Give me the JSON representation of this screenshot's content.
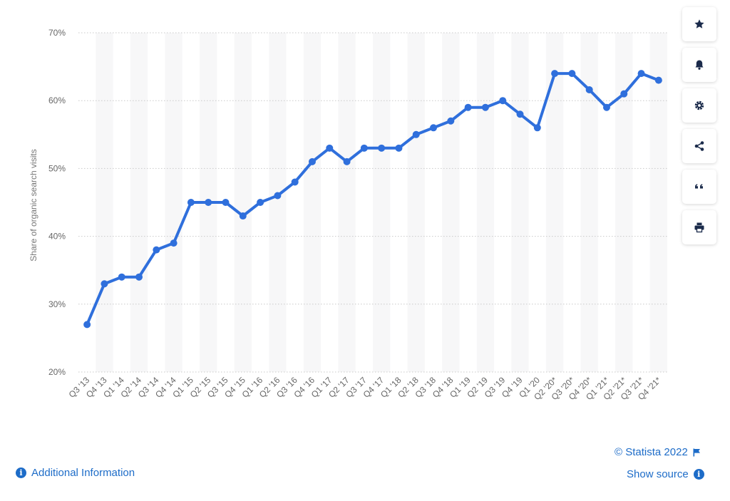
{
  "chart_data": {
    "type": "line",
    "title": "",
    "xlabel": "",
    "ylabel": "Share of organic search visits",
    "ylim": [
      20,
      70
    ],
    "yticks": [
      "20%",
      "30%",
      "40%",
      "50%",
      "60%",
      "70%"
    ],
    "ytick_values": [
      20,
      30,
      40,
      50,
      60,
      70
    ],
    "grid": true,
    "legend": "none",
    "categories": [
      "Q3 '13",
      "Q4 '13",
      "Q1 '14",
      "Q2 '14",
      "Q3 '14",
      "Q4 '14",
      "Q1 '15",
      "Q2 '15",
      "Q3 '15",
      "Q4 '15",
      "Q1 '16",
      "Q2 '16",
      "Q3 '16",
      "Q4 '16",
      "Q1 '17",
      "Q2 '17",
      "Q3 '17",
      "Q4 '17",
      "Q1 '18",
      "Q2 '18",
      "Q3 '18",
      "Q4 '18",
      "Q1 '19",
      "Q2 '19",
      "Q3 '19",
      "Q4 '19",
      "Q1 '20",
      "Q2 '20*",
      "Q3 '20*",
      "Q4 '20*",
      "Q1 '21*",
      "Q2 '21*",
      "Q3 '21*",
      "Q4 '21*"
    ],
    "series": [
      {
        "values": [
          27,
          33,
          34,
          34,
          38,
          39,
          45,
          45,
          45,
          43,
          45,
          46,
          48,
          51,
          53,
          51,
          53,
          53,
          53,
          55,
          56,
          57,
          59,
          59,
          60,
          58,
          56,
          64,
          64,
          61.6,
          59,
          61,
          64,
          63
        ],
        "color": "#2f6fdc"
      }
    ]
  },
  "footer": {
    "copyright": "© Statista 2022",
    "show_source": "Show source",
    "additional_info": "Additional Information"
  },
  "toolbar": {
    "icons": [
      "star-icon",
      "bell-icon",
      "gear-icon",
      "share-icon",
      "quote-icon",
      "print-icon"
    ]
  },
  "colors": {
    "accent": "#1d6cc8",
    "line": "#2f6fdc"
  }
}
